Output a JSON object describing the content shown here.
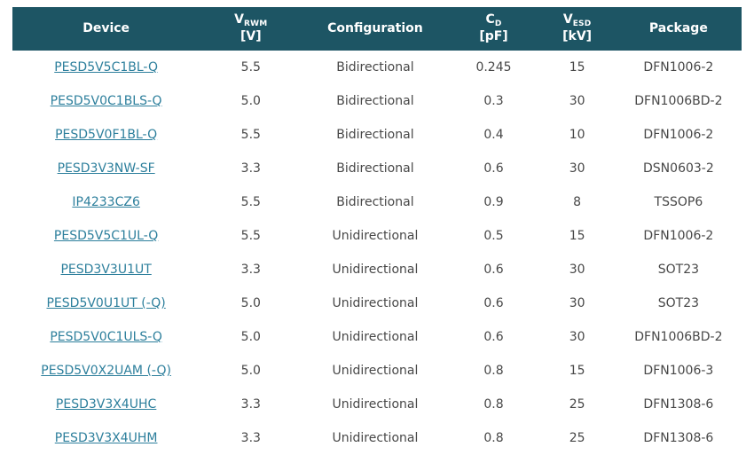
{
  "colors": {
    "header_background": "#1d5564",
    "header_text": "#ffffff",
    "device_link": "#2d7f9c",
    "body_text": "#474747",
    "page_background": "#ffffff"
  },
  "table": {
    "columns": [
      {
        "id": "device",
        "label": "Device"
      },
      {
        "id": "vrwm",
        "symbol": "V",
        "subscript": "RWM",
        "unit": "[V]"
      },
      {
        "id": "configuration",
        "label": "Configuration"
      },
      {
        "id": "cd",
        "symbol": "C",
        "subscript": "D",
        "unit": "[pF]"
      },
      {
        "id": "vesd",
        "symbol": "V",
        "subscript": "ESD",
        "unit": "[kV]"
      },
      {
        "id": "package",
        "label": "Package"
      }
    ],
    "rows": [
      {
        "device": "PESD5V5C1BL-Q",
        "vrwm": "5.5",
        "configuration": "Bidirectional",
        "cd": "0.245",
        "vesd": "15",
        "package": "DFN1006-2"
      },
      {
        "device": "PESD5V0C1BLS-Q",
        "vrwm": "5.0",
        "configuration": "Bidirectional",
        "cd": "0.3",
        "vesd": "30",
        "package": "DFN1006BD-2"
      },
      {
        "device": "PESD5V0F1BL-Q",
        "vrwm": "5.5",
        "configuration": "Bidirectional",
        "cd": "0.4",
        "vesd": "10",
        "package": "DFN1006-2"
      },
      {
        "device": "PESD3V3NW-SF",
        "vrwm": "3.3",
        "configuration": "Bidirectional",
        "cd": "0.6",
        "vesd": "30",
        "package": "DSN0603-2"
      },
      {
        "device": "IP4233CZ6",
        "vrwm": "5.5",
        "configuration": "Bidirectional",
        "cd": "0.9",
        "vesd": "8",
        "package": "TSSOP6"
      },
      {
        "device": "PESD5V5C1UL-Q",
        "vrwm": "5.5",
        "configuration": "Unidirectional",
        "cd": "0.5",
        "vesd": "15",
        "package": "DFN1006-2"
      },
      {
        "device": "PESD3V3U1UT",
        "vrwm": "3.3",
        "configuration": "Unidirectional",
        "cd": "0.6",
        "vesd": "30",
        "package": "SOT23"
      },
      {
        "device": "PESD5V0U1UT (-Q)",
        "vrwm": "5.0",
        "configuration": "Unidirectional",
        "cd": "0.6",
        "vesd": "30",
        "package": "SOT23"
      },
      {
        "device": "PESD5V0C1ULS-Q",
        "vrwm": "5.0",
        "configuration": "Unidirectional",
        "cd": "0.6",
        "vesd": "30",
        "package": "DFN1006BD-2"
      },
      {
        "device": "PESD5V0X2UAM (-Q)",
        "vrwm": "5.0",
        "configuration": "Unidirectional",
        "cd": "0.8",
        "vesd": "15",
        "package": "DFN1006-3"
      },
      {
        "device": "PESD3V3X4UHC",
        "vrwm": "3.3",
        "configuration": "Unidirectional",
        "cd": "0.8",
        "vesd": "25",
        "package": "DFN1308-6"
      },
      {
        "device": "PESD3V3X4UHM",
        "vrwm": "3.3",
        "configuration": "Unidirectional",
        "cd": "0.8",
        "vesd": "25",
        "package": "DFN1308-6"
      }
    ]
  }
}
